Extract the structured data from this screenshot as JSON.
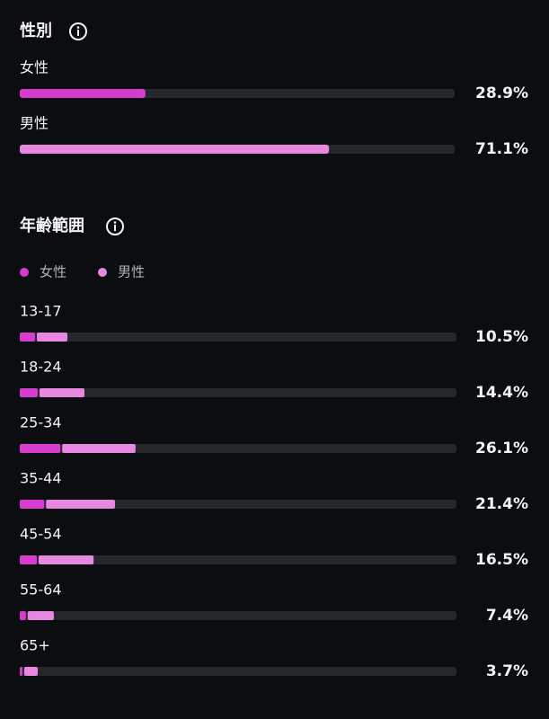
{
  "gender": {
    "title": "性別",
    "xlim": [
      0,
      100
    ],
    "rows": [
      {
        "label": "女性",
        "value": 28.9,
        "value_label": "28.9%",
        "color": "#d63ccd"
      },
      {
        "label": "男性",
        "value": 71.1,
        "value_label": "71.1%",
        "color": "#e887df"
      }
    ]
  },
  "age": {
    "title": "年齢範囲",
    "xlim": [
      0,
      100
    ],
    "legend": [
      {
        "name": "女性",
        "color": "#d63ccd"
      },
      {
        "name": "男性",
        "color": "#e887df"
      }
    ],
    "rows": [
      {
        "label": "13-17",
        "female": 3.5,
        "male": 7.0,
        "total_label": "10.5%"
      },
      {
        "label": "18-24",
        "female": 4.1,
        "male": 10.3,
        "total_label": "14.4%"
      },
      {
        "label": "25-34",
        "female": 9.3,
        "male": 16.8,
        "total_label": "26.1%"
      },
      {
        "label": "35-44",
        "female": 5.6,
        "male": 15.8,
        "total_label": "21.4%"
      },
      {
        "label": "45-54",
        "female": 3.9,
        "male": 12.6,
        "total_label": "16.5%"
      },
      {
        "label": "55-64",
        "female": 1.4,
        "male": 6.0,
        "total_label": "7.4%"
      },
      {
        "label": "65+",
        "female": 0.6,
        "male": 3.1,
        "total_label": "3.7%"
      }
    ]
  }
}
